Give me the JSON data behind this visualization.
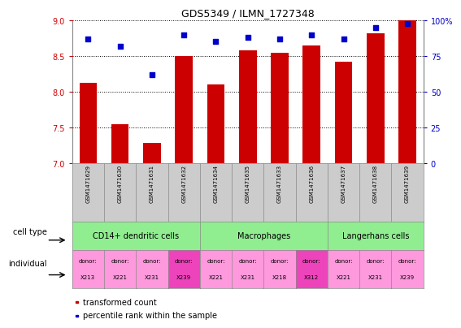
{
  "title": "GDS5349 / ILMN_1727348",
  "samples": [
    "GSM1471629",
    "GSM1471630",
    "GSM1471631",
    "GSM1471632",
    "GSM1471634",
    "GSM1471635",
    "GSM1471633",
    "GSM1471636",
    "GSM1471637",
    "GSM1471638",
    "GSM1471639"
  ],
  "bar_values": [
    8.12,
    7.55,
    7.28,
    8.5,
    8.1,
    8.58,
    8.55,
    8.65,
    8.42,
    8.82,
    9.0
  ],
  "dot_values": [
    87,
    82,
    62,
    90,
    85,
    88,
    87,
    90,
    87,
    95,
    98
  ],
  "ylim": [
    7.0,
    9.0
  ],
  "y2lim": [
    0,
    100
  ],
  "yticks": [
    7.0,
    7.5,
    8.0,
    8.5,
    9.0
  ],
  "y2ticks": [
    0,
    25,
    50,
    75,
    100
  ],
  "bar_color": "#cc0000",
  "dot_color": "#0000cc",
  "bar_bottom": 7.0,
  "cell_type_groups": [
    {
      "label": "CD14+ dendritic cells",
      "start": 0,
      "end": 4
    },
    {
      "label": "Macrophages",
      "start": 4,
      "end": 8
    },
    {
      "label": "Langerhans cells",
      "start": 8,
      "end": 11
    }
  ],
  "ind_labels": [
    "X213",
    "X221",
    "X231",
    "X239",
    "X221",
    "X231",
    "X218",
    "X312",
    "X221",
    "X231",
    "X239"
  ],
  "ind_highlight": [
    3,
    7
  ],
  "legend_bar_label": "transformed count",
  "legend_dot_label": "percentile rank within the sample",
  "cell_type_label": "cell type",
  "individual_label": "individual",
  "gray_color": "#cccccc",
  "green_color": "#90ee90",
  "pink_light": "#ff99dd",
  "pink_dark": "#ee44bb",
  "border_color": "#888888"
}
